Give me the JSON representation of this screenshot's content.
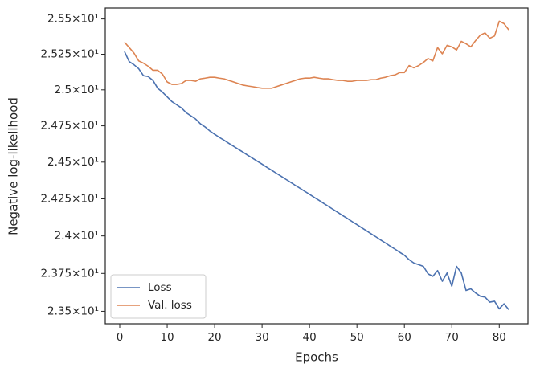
{
  "chart_data": {
    "type": "line",
    "xlabel": "Epochs",
    "ylabel": "Negative log-likelihood",
    "x": [
      1,
      2,
      3,
      4,
      5,
      6,
      7,
      8,
      9,
      10,
      11,
      12,
      13,
      14,
      15,
      16,
      17,
      18,
      19,
      20,
      21,
      22,
      23,
      24,
      25,
      26,
      27,
      28,
      29,
      30,
      31,
      32,
      33,
      34,
      35,
      36,
      37,
      38,
      39,
      40,
      41,
      42,
      43,
      44,
      45,
      46,
      47,
      48,
      49,
      50,
      51,
      52,
      53,
      54,
      55,
      56,
      57,
      58,
      59,
      60,
      61,
      62,
      63,
      64,
      65,
      66,
      67,
      68,
      69,
      70,
      71,
      72,
      73,
      74,
      75,
      76,
      77,
      78,
      79,
      80,
      81,
      82
    ],
    "series": [
      {
        "name": "Loss",
        "color": "#4c72b0",
        "values": [
          25.269,
          25.198,
          25.176,
          25.148,
          25.099,
          25.093,
          25.066,
          25.011,
          24.984,
          24.951,
          24.918,
          24.896,
          24.874,
          24.841,
          24.819,
          24.797,
          24.764,
          24.742,
          24.714,
          24.692,
          24.67,
          24.65,
          24.629,
          24.609,
          24.588,
          24.568,
          24.547,
          24.527,
          24.506,
          24.486,
          24.465,
          24.445,
          24.424,
          24.404,
          24.383,
          24.363,
          24.342,
          24.322,
          24.301,
          24.281,
          24.26,
          24.24,
          24.219,
          24.199,
          24.178,
          24.158,
          24.137,
          24.117,
          24.096,
          24.076,
          24.055,
          24.035,
          24.014,
          23.994,
          23.973,
          23.953,
          23.932,
          23.912,
          23.891,
          23.871,
          23.841,
          23.819,
          23.808,
          23.797,
          23.747,
          23.731,
          23.769,
          23.698,
          23.753,
          23.665,
          23.797,
          23.753,
          23.637,
          23.648,
          23.621,
          23.599,
          23.593,
          23.56,
          23.566,
          23.516,
          23.549,
          23.511
        ]
      },
      {
        "name": "Val. loss",
        "color": "#dd8452",
        "values": [
          25.335,
          25.297,
          25.258,
          25.203,
          25.187,
          25.165,
          25.137,
          25.137,
          25.11,
          25.055,
          25.038,
          25.038,
          25.044,
          25.066,
          25.066,
          25.06,
          25.077,
          25.082,
          25.088,
          25.088,
          25.082,
          25.077,
          25.066,
          25.055,
          25.044,
          25.033,
          25.027,
          25.022,
          25.016,
          25.011,
          25.011,
          25.011,
          25.022,
          25.033,
          25.044,
          25.055,
          25.066,
          25.077,
          25.082,
          25.082,
          25.088,
          25.082,
          25.077,
          25.077,
          25.071,
          25.066,
          25.066,
          25.06,
          25.06,
          25.066,
          25.066,
          25.066,
          25.071,
          25.071,
          25.082,
          25.088,
          25.099,
          25.104,
          25.121,
          25.121,
          25.17,
          25.154,
          25.17,
          25.192,
          25.22,
          25.203,
          25.297,
          25.253,
          25.313,
          25.302,
          25.28,
          25.341,
          25.324,
          25.302,
          25.346,
          25.385,
          25.401,
          25.363,
          25.379,
          25.484,
          25.467,
          25.423
        ]
      }
    ],
    "xlim": [
      -3.05,
      86.05
    ],
    "xticks": [
      0,
      10,
      20,
      30,
      40,
      50,
      60,
      70,
      80
    ],
    "ylim": [
      23.418,
      25.578
    ],
    "yscale": "log",
    "yticks": [
      {
        "value": 23.5,
        "label": "2.35×10¹"
      },
      {
        "value": 23.75,
        "label": "2.375×10¹"
      },
      {
        "value": 24,
        "label": "2.4×10¹"
      },
      {
        "value": 24.25,
        "label": "2.425×10¹"
      },
      {
        "value": 24.5,
        "label": "2.45×10¹"
      },
      {
        "value": 24.75,
        "label": "2.475×10¹"
      },
      {
        "value": 25,
        "label": "2.5×10¹"
      },
      {
        "value": 25.25,
        "label": "2.525×10¹"
      },
      {
        "value": 25.5,
        "label": "2.55×10¹"
      }
    ],
    "grid": false,
    "legend": "lower left"
  }
}
